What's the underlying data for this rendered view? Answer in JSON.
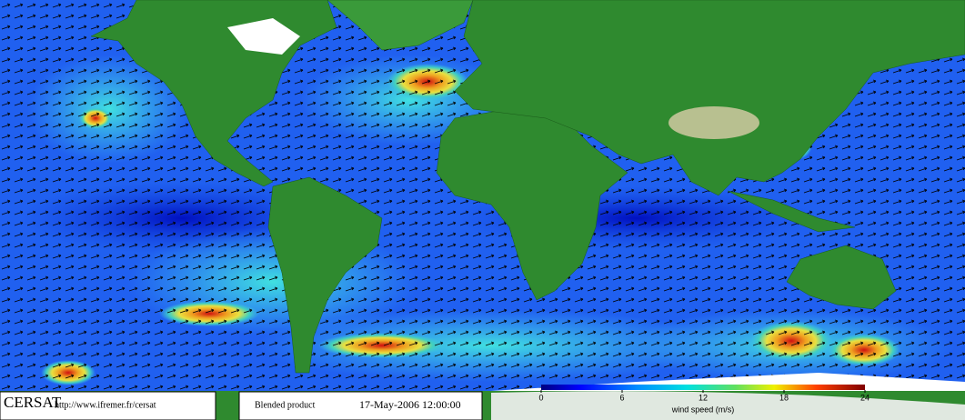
{
  "header": {
    "logo": "CERSAT",
    "url": "http://www.ifremer.fr/cersat",
    "product": "Blended product",
    "date": "17-May-2006 12:00:00"
  },
  "colorbar": {
    "label": "wind speed (m/s)",
    "lim": [
      0,
      24
    ],
    "ticks": [
      0,
      6,
      12,
      18,
      24
    ]
  }
}
